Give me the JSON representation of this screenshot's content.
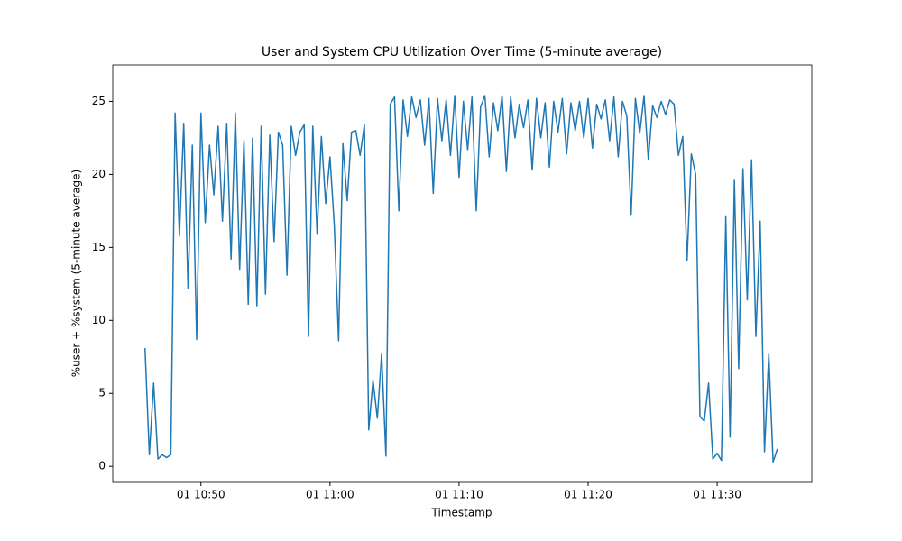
{
  "chart_data": {
    "type": "line",
    "title": "User and System CPU Utilization Over Time (5-minute average)",
    "x_label": "Timestamp",
    "y_label": "%user + %system (5-minute average)",
    "color": "#1f77b4",
    "xlim": [
      "01 10:43:10",
      "01 11:37:20"
    ],
    "xticks": [
      "01 10:50",
      "01 11:00",
      "01 11:10",
      "01 11:20",
      "01 11:30"
    ],
    "ylim": [
      -1.1,
      27.5
    ],
    "yticks": [
      0,
      5,
      10,
      15,
      20,
      25
    ],
    "x": [
      "01 10:45:40",
      "01 10:46:00",
      "01 10:46:20",
      "01 10:46:40",
      "01 10:47:00",
      "01 10:47:20",
      "01 10:47:40",
      "01 10:48:00",
      "01 10:48:20",
      "01 10:48:40",
      "01 10:49:00",
      "01 10:49:20",
      "01 10:49:40",
      "01 10:50:00",
      "01 10:50:20",
      "01 10:50:40",
      "01 10:51:00",
      "01 10:51:20",
      "01 10:51:40",
      "01 10:52:00",
      "01 10:52:20",
      "01 10:52:40",
      "01 10:53:00",
      "01 10:53:20",
      "01 10:53:40",
      "01 10:54:00",
      "01 10:54:20",
      "01 10:54:40",
      "01 10:55:00",
      "01 10:55:20",
      "01 10:55:40",
      "01 10:56:00",
      "01 10:56:20",
      "01 10:56:40",
      "01 10:57:00",
      "01 10:57:20",
      "01 10:57:40",
      "01 10:58:00",
      "01 10:58:20",
      "01 10:58:40",
      "01 10:59:00",
      "01 10:59:20",
      "01 10:59:40",
      "01 11:00:00",
      "01 11:00:20",
      "01 11:00:40",
      "01 11:01:00",
      "01 11:01:20",
      "01 11:01:40",
      "01 11:02:00",
      "01 11:02:20",
      "01 11:02:40",
      "01 11:03:00",
      "01 11:03:20",
      "01 11:03:40",
      "01 11:04:00",
      "01 11:04:20",
      "01 11:04:40",
      "01 11:05:00",
      "01 11:05:20",
      "01 11:05:40",
      "01 11:06:00",
      "01 11:06:20",
      "01 11:06:40",
      "01 11:07:00",
      "01 11:07:20",
      "01 11:07:40",
      "01 11:08:00",
      "01 11:08:20",
      "01 11:08:40",
      "01 11:09:00",
      "01 11:09:20",
      "01 11:09:40",
      "01 11:10:00",
      "01 11:10:20",
      "01 11:10:40",
      "01 11:11:00",
      "01 11:11:20",
      "01 11:11:40",
      "01 11:12:00",
      "01 11:12:20",
      "01 11:12:40",
      "01 11:13:00",
      "01 11:13:20",
      "01 11:13:40",
      "01 11:14:00",
      "01 11:14:20",
      "01 11:14:40",
      "01 11:15:00",
      "01 11:15:20",
      "01 11:15:40",
      "01 11:16:00",
      "01 11:16:20",
      "01 11:16:40",
      "01 11:17:00",
      "01 11:17:20",
      "01 11:17:40",
      "01 11:18:00",
      "01 11:18:20",
      "01 11:18:40",
      "01 11:19:00",
      "01 11:19:20",
      "01 11:19:40",
      "01 11:20:00",
      "01 11:20:20",
      "01 11:20:40",
      "01 11:21:00",
      "01 11:21:20",
      "01 11:21:40",
      "01 11:22:00",
      "01 11:22:20",
      "01 11:22:40",
      "01 11:23:00",
      "01 11:23:20",
      "01 11:23:40",
      "01 11:24:00",
      "01 11:24:20",
      "01 11:24:40",
      "01 11:25:00",
      "01 11:25:20",
      "01 11:25:40",
      "01 11:26:00",
      "01 11:26:20",
      "01 11:26:40",
      "01 11:27:00",
      "01 11:27:20",
      "01 11:27:40",
      "01 11:28:00",
      "01 11:28:20",
      "01 11:28:40",
      "01 11:29:00",
      "01 11:29:20",
      "01 11:29:40",
      "01 11:30:00",
      "01 11:30:20",
      "01 11:30:40",
      "01 11:31:00",
      "01 11:31:20",
      "01 11:31:40",
      "01 11:32:00",
      "01 11:32:20",
      "01 11:32:40",
      "01 11:33:00",
      "01 11:33:20",
      "01 11:33:40",
      "01 11:34:00",
      "01 11:34:20",
      "01 11:34:40"
    ],
    "values": [
      8.1,
      0.8,
      5.7,
      0.5,
      0.8,
      0.6,
      0.8,
      24.2,
      15.8,
      23.5,
      12.2,
      22.0,
      8.7,
      24.2,
      16.7,
      22.0,
      18.6,
      23.3,
      16.8,
      23.5,
      14.2,
      24.2,
      13.5,
      22.3,
      11.1,
      22.5,
      11.0,
      23.3,
      11.8,
      22.7,
      15.4,
      22.9,
      22.0,
      13.1,
      23.3,
      21.3,
      22.9,
      23.4,
      8.9,
      23.3,
      15.9,
      22.6,
      18.0,
      21.2,
      16.5,
      8.6,
      22.1,
      18.2,
      22.9,
      23.0,
      21.3,
      23.4,
      2.5,
      5.9,
      3.3,
      7.7,
      0.7,
      24.8,
      25.3,
      17.5,
      25.1,
      22.6,
      25.3,
      23.9,
      25.1,
      22.0,
      25.2,
      18.7,
      25.2,
      22.3,
      25.1,
      21.3,
      25.4,
      19.8,
      25.0,
      21.7,
      25.3,
      17.5,
      24.6,
      25.4,
      21.2,
      24.9,
      23.0,
      25.4,
      20.2,
      25.3,
      22.5,
      24.8,
      23.2,
      25.1,
      20.3,
      25.2,
      22.5,
      24.9,
      20.5,
      25.0,
      22.9,
      25.2,
      21.4,
      24.9,
      23.0,
      25.0,
      22.5,
      25.2,
      21.8,
      24.8,
      23.8,
      25.1,
      22.3,
      25.3,
      21.2,
      25.0,
      24.0,
      17.2,
      25.2,
      22.8,
      25.4,
      21.0,
      24.7,
      23.9,
      25.0,
      24.1,
      25.1,
      24.8,
      21.3,
      22.6,
      14.1,
      21.4,
      20.0,
      3.4,
      3.1,
      5.7,
      0.5,
      0.9,
      0.4,
      17.1,
      2.0,
      19.6,
      6.7,
      20.4,
      11.4,
      21.0,
      8.9,
      16.8,
      1.0,
      7.7,
      0.3,
      1.2
    ]
  }
}
